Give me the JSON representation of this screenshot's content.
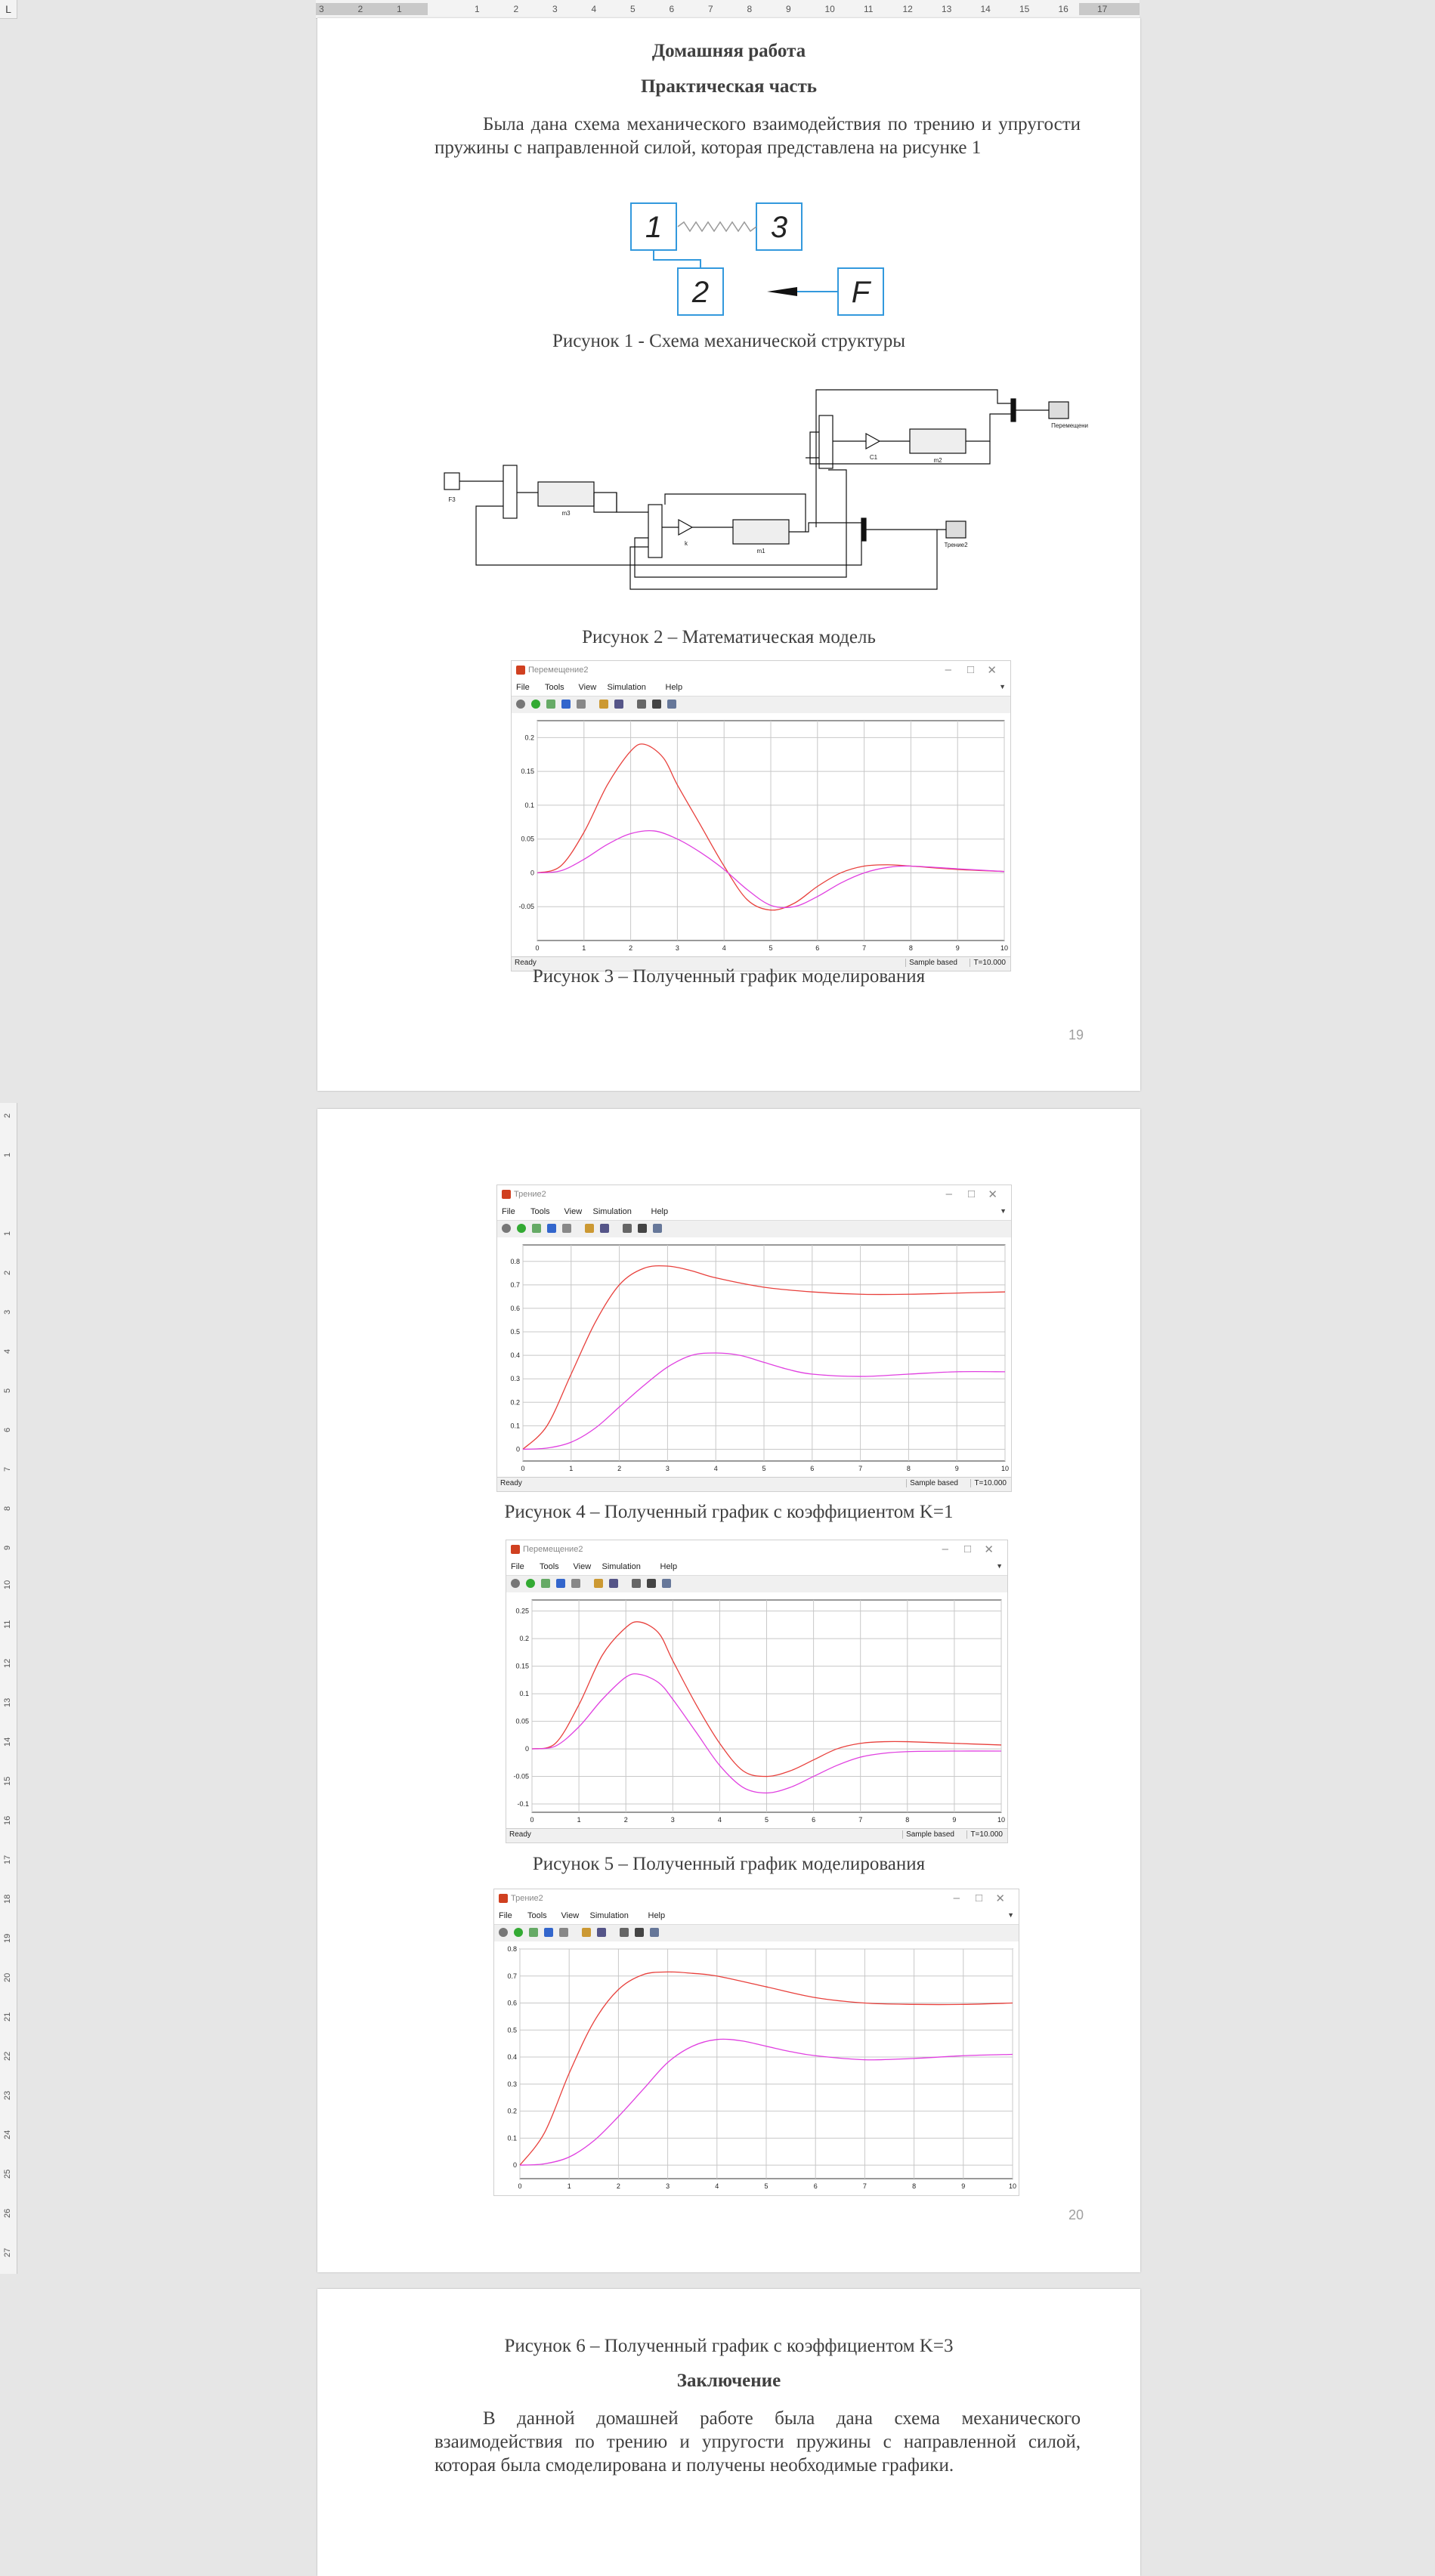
{
  "ruler": {
    "corner": "L",
    "top_ticks": [
      "3",
      "2",
      "1",
      "",
      "1",
      "2",
      "3",
      "4",
      "5",
      "6",
      "7",
      "8",
      "9",
      "10",
      "11",
      "12",
      "13",
      "14",
      "15",
      "16",
      "17"
    ],
    "left_ticks": [
      "2",
      "1",
      "",
      "1",
      "2",
      "3",
      "4",
      "5",
      "6",
      "7",
      "8",
      "9",
      "10",
      "11",
      "12",
      "13",
      "14",
      "15",
      "16",
      "17",
      "18",
      "19",
      "20",
      "21",
      "22",
      "23",
      "24",
      "25",
      "26",
      "27"
    ]
  },
  "page1": {
    "title": "Домашняя работа",
    "subtitle": "Практическая часть",
    "paragraph": "Была дана схема механического взаимодействия по трению и упругости пружины с направленной силой, которая представлена на рисунке 1",
    "scheme": {
      "box1": "1",
      "box2": "2",
      "box3": "3",
      "boxF": "F"
    },
    "fig1_caption": "Рисунок 1 - Схема механической структуры",
    "model": {
      "constant_label": "F3",
      "integrator1_label": "m3",
      "gain1_label": "k",
      "integrator2_label": "m1",
      "gain2_label": "C1",
      "integrator3_label": "m2",
      "scope1_label": "Перемещение2",
      "scope2_label": "Трение2"
    },
    "fig2_caption": "Рисунок 2 – Математическая модель",
    "fig3_caption": "Рисунок 3 – Полученный график моделирования",
    "page_number": "19"
  },
  "page2": {
    "fig4_caption": "Рисунок 4 – Полученный график с коэффициентом K=1",
    "fig5_caption": "Рисунок 5 – Полученный график моделирования",
    "page_number": "20"
  },
  "page3": {
    "fig6_caption": "Рисунок 6 – Полученный график с коэффициентом K=3",
    "conclusion_title": "Заключение",
    "conclusion_text": "В данной домашней работе была дана схема механического взаимодействия по трению и упругости пружины с направленной силой, которая была смоделирована и получены необходимые графики."
  },
  "scope_ui": {
    "menu": [
      "File",
      "Tools",
      "View",
      "Simulation",
      "Help"
    ],
    "status_ready": "Ready",
    "status_mode": "Sample based",
    "status_time": "T=10.000",
    "colors": {
      "series1": "#e8403c",
      "series2": "#e040e0",
      "grid": "#c8c8c8"
    }
  },
  "chart_data": [
    {
      "type": "line",
      "window_title": "Перемещение2",
      "x_ticks": [
        "0",
        "1",
        "2",
        "3",
        "4",
        "5",
        "6",
        "7",
        "8",
        "9",
        "10"
      ],
      "y_ticks": [
        "-0.05",
        "0",
        "0.05",
        "0.1",
        "0.15",
        "0.2"
      ],
      "xlim": [
        0,
        10
      ],
      "ylim": [
        -0.1,
        0.225
      ],
      "grid": true,
      "status": true,
      "series": [
        {
          "x": [
            0,
            0.5,
            1,
            1.5,
            2,
            2.3,
            2.7,
            3,
            3.5,
            4,
            4.5,
            5,
            5.5,
            6,
            6.5,
            7,
            7.5,
            8,
            9,
            10
          ],
          "values": [
            0,
            0.01,
            0.06,
            0.13,
            0.18,
            0.19,
            0.17,
            0.13,
            0.07,
            0.01,
            -0.04,
            -0.055,
            -0.045,
            -0.02,
            0,
            0.01,
            0.012,
            0.01,
            0.005,
            0.002
          ],
          "color": "#e8403c"
        },
        {
          "x": [
            0,
            0.5,
            1,
            1.5,
            2,
            2.5,
            3,
            3.5,
            4,
            4.5,
            5,
            5.5,
            6,
            6.5,
            7,
            7.5,
            8,
            9,
            10
          ],
          "values": [
            0,
            0.003,
            0.02,
            0.042,
            0.058,
            0.062,
            0.05,
            0.03,
            0.005,
            -0.025,
            -0.048,
            -0.05,
            -0.035,
            -0.015,
            0,
            0.008,
            0.01,
            0.006,
            0.002
          ],
          "color": "#e040e0"
        }
      ]
    },
    {
      "type": "line",
      "window_title": "Трение2",
      "x_ticks": [
        "0",
        "1",
        "2",
        "3",
        "4",
        "5",
        "6",
        "7",
        "8",
        "9",
        "10"
      ],
      "y_ticks": [
        "0",
        "0.1",
        "0.2",
        "0.3",
        "0.4",
        "0.5",
        "0.6",
        "0.7",
        "0.8"
      ],
      "xlim": [
        0,
        10
      ],
      "ylim": [
        -0.05,
        0.87
      ],
      "grid": true,
      "status": true,
      "series": [
        {
          "x": [
            0,
            0.5,
            1,
            1.5,
            2,
            2.5,
            3,
            3.5,
            4,
            5,
            6,
            7,
            8,
            9,
            10
          ],
          "values": [
            0,
            0.1,
            0.32,
            0.54,
            0.7,
            0.77,
            0.78,
            0.76,
            0.73,
            0.69,
            0.67,
            0.66,
            0.66,
            0.665,
            0.67
          ],
          "color": "#e8403c"
        },
        {
          "x": [
            0,
            0.5,
            1,
            1.5,
            2,
            2.5,
            3,
            3.5,
            4,
            4.5,
            5,
            5.5,
            6,
            7,
            8,
            9,
            10
          ],
          "values": [
            0,
            0.005,
            0.03,
            0.09,
            0.18,
            0.27,
            0.35,
            0.4,
            0.41,
            0.4,
            0.37,
            0.34,
            0.32,
            0.31,
            0.32,
            0.33,
            0.33
          ],
          "color": "#e040e0"
        }
      ]
    },
    {
      "type": "line",
      "window_title": "Перемещение2",
      "x_ticks": [
        "0",
        "1",
        "2",
        "3",
        "4",
        "5",
        "6",
        "7",
        "8",
        "9",
        "10"
      ],
      "y_ticks": [
        "-0.1",
        "-0.05",
        "0",
        "0.05",
        "0.1",
        "0.15",
        "0.2",
        "0.25"
      ],
      "xlim": [
        0,
        10
      ],
      "ylim": [
        -0.115,
        0.27
      ],
      "grid": true,
      "status": true,
      "series": [
        {
          "x": [
            0,
            0.5,
            1,
            1.5,
            2,
            2.3,
            2.7,
            3,
            3.5,
            4,
            4.5,
            5,
            5.5,
            6,
            6.5,
            7,
            7.5,
            8,
            9,
            10
          ],
          "values": [
            0,
            0.01,
            0.08,
            0.17,
            0.22,
            0.23,
            0.21,
            0.16,
            0.08,
            0.01,
            -0.04,
            -0.05,
            -0.04,
            -0.02,
            0,
            0.01,
            0.013,
            0.013,
            0.01,
            0.007
          ],
          "color": "#e8403c"
        },
        {
          "x": [
            0,
            0.5,
            1,
            1.5,
            2,
            2.3,
            2.7,
            3,
            3.5,
            4,
            4.5,
            5,
            5.5,
            6,
            6.5,
            7,
            7.5,
            8,
            9,
            10
          ],
          "values": [
            0,
            0.005,
            0.04,
            0.09,
            0.13,
            0.135,
            0.12,
            0.09,
            0.03,
            -0.03,
            -0.07,
            -0.08,
            -0.07,
            -0.05,
            -0.03,
            -0.015,
            -0.008,
            -0.005,
            -0.004,
            -0.004
          ],
          "color": "#e040e0"
        }
      ]
    },
    {
      "type": "line",
      "window_title": "Трение2",
      "x_ticks": [
        "0",
        "1",
        "2",
        "3",
        "4",
        "5",
        "6",
        "7",
        "8",
        "9",
        "10"
      ],
      "y_ticks": [
        "0",
        "0.1",
        "0.2",
        "0.3",
        "0.4",
        "0.5",
        "0.6",
        "0.7",
        "0.8"
      ],
      "xlim": [
        0,
        10
      ],
      "ylim": [
        -0.05,
        0.8
      ],
      "grid": true,
      "status": false,
      "series": [
        {
          "x": [
            0,
            0.5,
            1,
            1.5,
            2,
            2.5,
            3,
            3.5,
            4,
            5,
            6,
            7,
            8,
            9,
            10
          ],
          "values": [
            0,
            0.12,
            0.34,
            0.53,
            0.65,
            0.705,
            0.715,
            0.71,
            0.7,
            0.66,
            0.62,
            0.6,
            0.595,
            0.595,
            0.6
          ],
          "color": "#e8403c"
        },
        {
          "x": [
            0,
            0.5,
            1,
            1.5,
            2,
            2.5,
            3,
            3.5,
            4,
            4.5,
            5,
            5.5,
            6,
            7,
            8,
            9,
            10
          ],
          "values": [
            0,
            0.005,
            0.03,
            0.09,
            0.18,
            0.28,
            0.38,
            0.44,
            0.465,
            0.46,
            0.44,
            0.42,
            0.405,
            0.39,
            0.395,
            0.405,
            0.41
          ],
          "color": "#e040e0"
        }
      ]
    }
  ]
}
